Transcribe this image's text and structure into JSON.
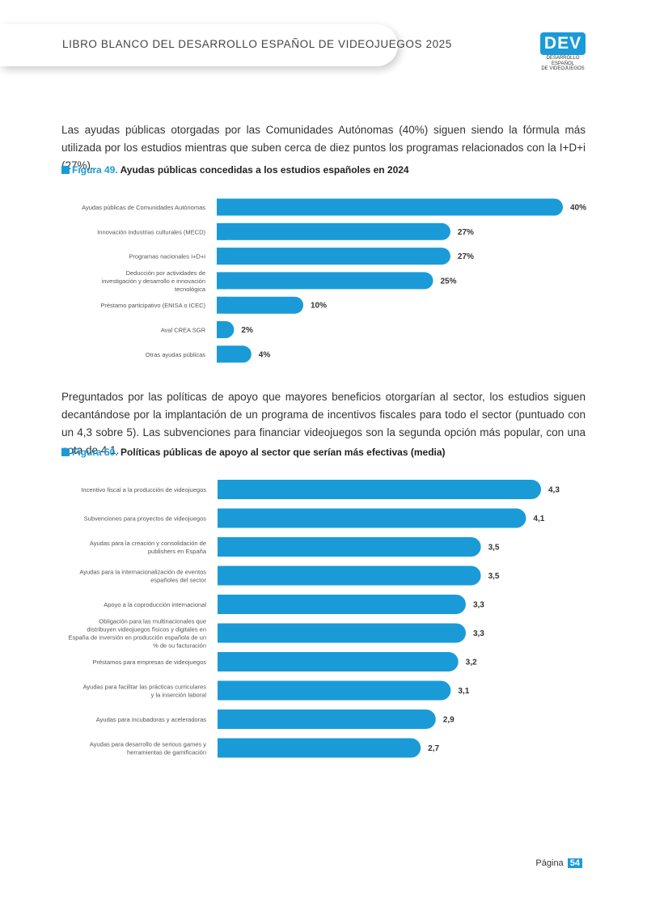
{
  "header": {
    "title": "LIBRO BLANCO DEL DESARROLLO ESPAÑOL DE VIDEOJUEGOS 2025",
    "logo_text": "DEV",
    "logo_sub1": "DESARROLLO ESPAÑOL",
    "logo_sub2": "DE VIDEOJUEGOS"
  },
  "paragraph1": "Las ayudas públicas otorgadas por las Comunidades Autónomas (40%) siguen siendo la fórmula más utilizada por los estudios mientras que suben cerca de diez puntos los programas relacionados con la I+D+i (27%).",
  "figure49": {
    "number": "Figura 49.",
    "title": "Ayudas públicas concedidas a los estudios españoles en 2024"
  },
  "paragraph2": "Preguntados por las políticas de apoyo que mayores beneficios otorgarían al sector, los estudios siguen decantándose por la implantación de un programa de incentivos fiscales para todo el sector (puntuado con un 4,3 sobre 5). Las subvenciones para financiar videojuegos son la segunda opción más popular, con una nota de 4,1.",
  "figure50": {
    "number": "Figura 50.",
    "title": "Políticas públicas de apoyo al sector que serían más efectivas (media)"
  },
  "chart_data": [
    {
      "type": "bar",
      "orientation": "horizontal",
      "color": "#1a9bd7",
      "categories": [
        "Ayudas públicas de Comunidades Autónomas",
        "Innovación industrias culturales (MECD)",
        "Programas nacionales I+D+i",
        "Deducción por actividades de investigación y desarrollo e innovación tecnológica",
        "Préstamo participativo (ENISA o ICEC)",
        "Aval CREA SGR",
        "Otras ayudas públicas"
      ],
      "values": [
        40,
        27,
        27,
        25,
        10,
        2,
        4
      ],
      "value_labels": [
        "40%",
        "27%",
        "27%",
        "25%",
        "10%",
        "2%",
        "4%"
      ],
      "xlim": [
        0,
        40
      ]
    },
    {
      "type": "bar",
      "orientation": "horizontal",
      "color": "#1a9bd7",
      "categories": [
        "Incentivo fiscal a la producción de videojuegos",
        "Subvenciones para proyectos de videojuegos",
        "Ayudas para la creación y consolidación de publishers en España",
        "Ayudas para la internacionalización de eventos españoles del sector",
        "Apoyo a la coproducción internacional",
        "Obligación para las multinacionales que distribuyen videojuegos físicos y digitales en España de inversión en producción española de un % de su facturación",
        "Préstamos para empresas de videojuegos",
        "Ayudas para facilitar las prácticas curriculares y la inserción laboral",
        "Ayudas para incubadoras y aceleradoras",
        "Ayudas para desarrollo de serious games y herramientas de gamificación"
      ],
      "values": [
        4.3,
        4.1,
        3.5,
        3.5,
        3.3,
        3.3,
        3.2,
        3.1,
        2.9,
        2.7
      ],
      "value_labels": [
        "4,3",
        "4,1",
        "3,5",
        "3,5",
        "3,3",
        "3,3",
        "3,2",
        "3,1",
        "2,9",
        "2,7"
      ],
      "xlim": [
        0,
        4.3
      ]
    }
  ],
  "footer": {
    "label": "Página",
    "page": "54"
  }
}
